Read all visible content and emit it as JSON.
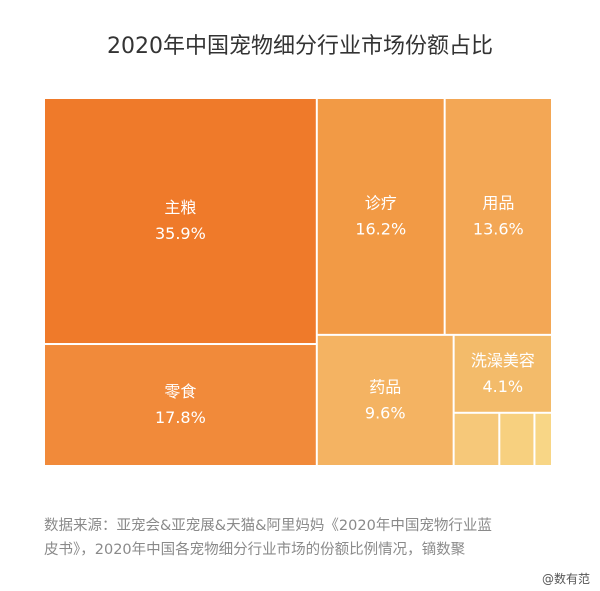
{
  "page": {
    "title": "2020年中国宠物细分行业市场份额占比",
    "source_line1": "数据来源：亚宠会&亚宠展&天猫&阿里妈妈《2020年中国宠物行业蓝",
    "source_line2": "皮书》，2020年中国各宠物细分行业市场的份额比例情况，镝数聚",
    "footer": "@数有范"
  },
  "chart_data": {
    "type": "treemap",
    "title": "2020年中国宠物细分行业市场份额占比",
    "unit": "%",
    "items": [
      {
        "name": "主粮",
        "value": 35.9,
        "label": "35.9%",
        "color": "#ef7a2a"
      },
      {
        "name": "零食",
        "value": 17.8,
        "label": "17.8%",
        "color": "#f18a3a"
      },
      {
        "name": "诊疗",
        "value": 16.2,
        "label": "16.2%",
        "color": "#f29a45"
      },
      {
        "name": "用品",
        "value": 13.6,
        "label": "13.6%",
        "color": "#f3a755"
      },
      {
        "name": "药品",
        "value": 9.6,
        "label": "9.6%",
        "color": "#f4b362"
      },
      {
        "name": "洗澡美容",
        "value": 4.1,
        "label": "4.1%",
        "color": "#f3bb6a"
      },
      {
        "name": "",
        "value": 1.3,
        "label": "",
        "color": "#f6c879"
      },
      {
        "name": "",
        "value": 1.0,
        "label": "",
        "color": "#f7d07f"
      },
      {
        "name": "",
        "value": 0.5,
        "label": "",
        "color": "#f8d686"
      }
    ]
  }
}
